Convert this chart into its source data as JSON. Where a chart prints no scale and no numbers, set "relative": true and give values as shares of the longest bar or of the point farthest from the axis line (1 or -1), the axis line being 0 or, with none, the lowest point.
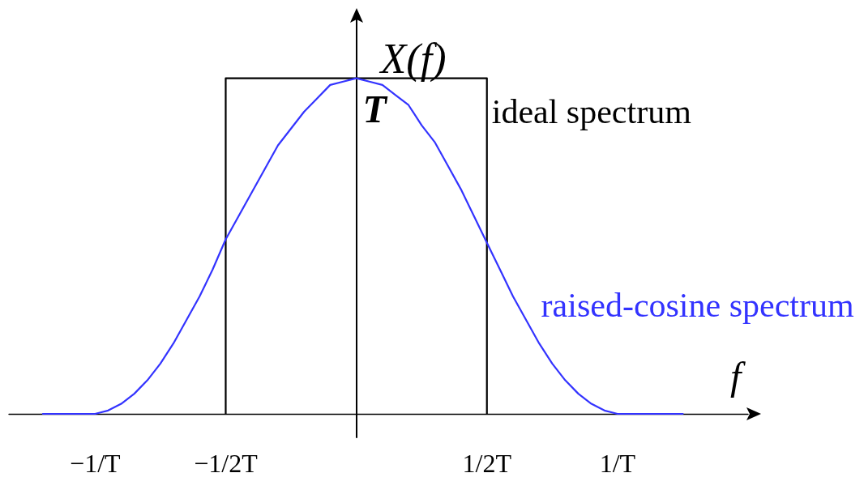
{
  "chart_data": {
    "type": "line",
    "ylabel": "X(f)",
    "xlabel": "f",
    "relative": true,
    "marker": "none",
    "line_style": "solid",
    "xlim": [
      -1.33,
      1.5
    ],
    "xticks": [
      {
        "value": -1,
        "label": "−1/T"
      },
      {
        "value": -0.5,
        "label": "−1/2T"
      },
      {
        "value": 0.5,
        "label": "1/2T"
      },
      {
        "value": 1,
        "label": "1/T"
      }
    ],
    "series": [
      {
        "name": "ideal spectrum",
        "color": "#000000",
        "x": [
          -0.5,
          -0.5,
          0.5,
          0.5
        ],
        "values": [
          0,
          1,
          1,
          0
        ]
      },
      {
        "name": "raised-cosine spectrum",
        "color": "#3333ff",
        "x": [
          -1.2,
          -1,
          -0.95,
          -0.9,
          -0.85,
          -0.8,
          -0.75,
          -0.7,
          -0.65,
          -0.6,
          -0.55,
          -0.5,
          -0.45,
          -0.4,
          -0.35,
          -0.3,
          -0.25,
          -0.2,
          -0.15,
          -0.1,
          -0.05,
          0,
          0.05,
          0.1,
          0.15,
          0.2,
          0.25,
          0.3,
          0.35,
          0.4,
          0.45,
          0.5,
          0.55,
          0.6,
          0.65,
          0.7,
          0.75,
          0.8,
          0.85,
          0.9,
          0.95,
          1,
          1.25
        ],
        "values": [
          0,
          0,
          0.01,
          0.03,
          0.06,
          0.1,
          0.15,
          0.21,
          0.28,
          0.35,
          0.43,
          0.52,
          0.59,
          0.66,
          0.73,
          0.8,
          0.85,
          0.9,
          0.94,
          0.98,
          0.99,
          1,
          0.99,
          0.98,
          0.95,
          0.92,
          0.86,
          0.81,
          0.74,
          0.67,
          0.59,
          0.51,
          0.43,
          0.35,
          0.28,
          0.21,
          0.15,
          0.1,
          0.06,
          0.03,
          0.01,
          0,
          0
        ]
      }
    ],
    "annotations": [
      {
        "text": "T",
        "x": 0,
        "y": 1
      }
    ]
  }
}
